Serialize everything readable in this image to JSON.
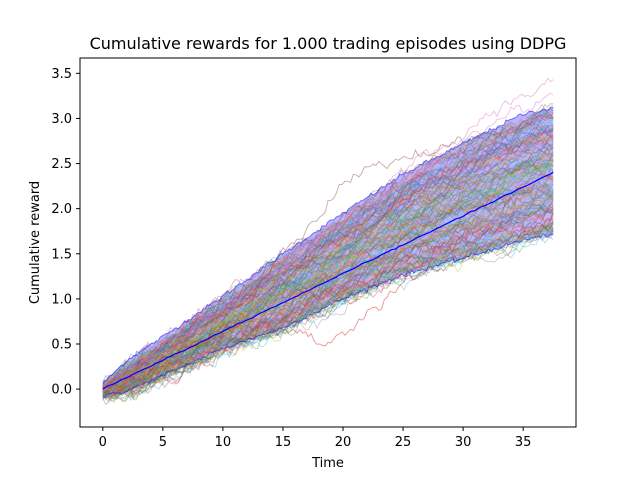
{
  "chart_data": {
    "type": "line",
    "title": "Cumulative rewards for 1.000 trading episodes using DDPG",
    "xlabel": "Time",
    "ylabel": "Cumulative reward",
    "xlim": [
      -1.9,
      39.4
    ],
    "ylim": [
      -0.42,
      3.67
    ],
    "xticks": [
      0,
      5,
      10,
      15,
      20,
      25,
      30,
      35
    ],
    "yticks": [
      0.0,
      0.5,
      1.0,
      1.5,
      2.0,
      2.5,
      3.0,
      3.5
    ],
    "xtick_labels": [
      "0",
      "5",
      "10",
      "15",
      "20",
      "25",
      "30",
      "35"
    ],
    "ytick_labels": [
      "0.0",
      "0.5",
      "1.0",
      "1.5",
      "2.0",
      "2.5",
      "3.0",
      "3.5"
    ],
    "grid": false,
    "legend": "none",
    "episodes": 1000,
    "mean_series": {
      "color": "#0000ff",
      "x": [
        0,
        37.5
      ],
      "y": [
        0.0,
        2.4
      ]
    },
    "band_upper": {
      "color": "#0000ff",
      "x": [
        0,
        2,
        5,
        10,
        15,
        20,
        25,
        30,
        35,
        37.5
      ],
      "y": [
        0.06,
        0.32,
        0.58,
        1.03,
        1.5,
        1.95,
        2.38,
        2.72,
        3.05,
        3.12
      ]
    },
    "band_lower": {
      "color": "#0000ff",
      "x": [
        0,
        2,
        5,
        10,
        15,
        20,
        25,
        30,
        35,
        37.5
      ],
      "y": [
        -0.08,
        -0.02,
        0.15,
        0.45,
        0.68,
        1.0,
        1.27,
        1.45,
        1.65,
        1.72
      ]
    },
    "episode_colors": [
      "#1f77b4",
      "#ff7f0e",
      "#2ca02c",
      "#d62728",
      "#9467bd",
      "#8c564b",
      "#e377c2",
      "#7f7f7f",
      "#bcbd22",
      "#17becf"
    ],
    "outlier_series": [
      {
        "color": "#e377c2",
        "x": [
          0,
          10,
          20,
          28,
          32,
          37.5
        ],
        "y": [
          0.0,
          0.95,
          1.95,
          2.7,
          3.05,
          3.5
        ]
      },
      {
        "color": "#8c564b",
        "x": [
          0,
          10,
          18,
          20,
          25,
          30,
          37.5
        ],
        "y": [
          0.0,
          0.9,
          2.0,
          2.35,
          2.6,
          2.75,
          3.05
        ]
      },
      {
        "color": "#e377c2",
        "x": [
          0,
          10,
          20,
          30,
          37.5
        ],
        "y": [
          0.0,
          0.88,
          1.85,
          2.8,
          3.3
        ]
      },
      {
        "color": "#d62728",
        "x": [
          0,
          10,
          17.5,
          18,
          25,
          37.5
        ],
        "y": [
          0.0,
          0.7,
          0.6,
          0.45,
          1.2,
          1.9
        ]
      }
    ]
  }
}
